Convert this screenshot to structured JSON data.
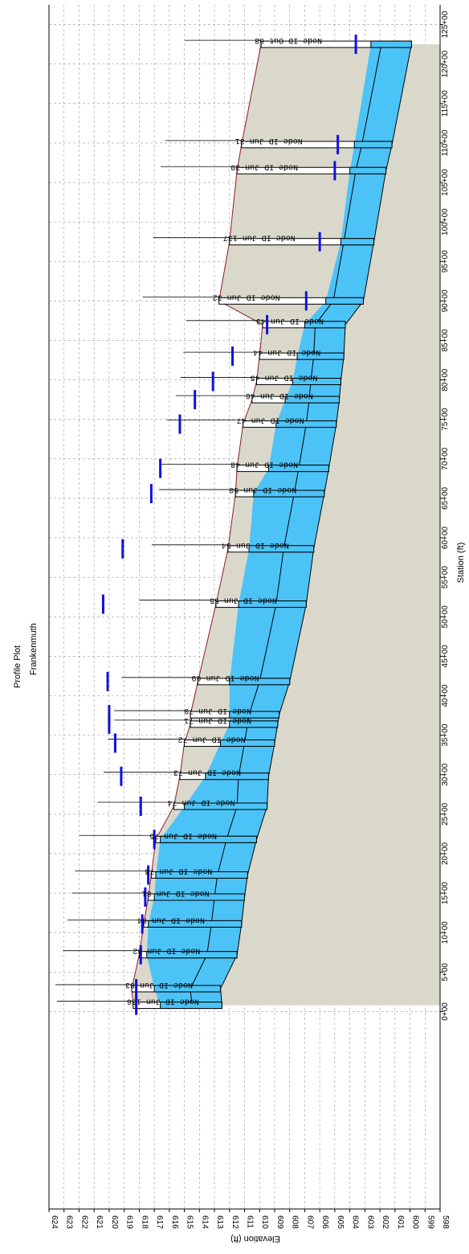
{
  "chart_data": {
    "type": "profile",
    "title": "Profile Plot",
    "subtitle": "Frankenmuth",
    "xlabel": "Station (ft)",
    "ylabel": "Elevation (ft)",
    "xlim": [
      -2500,
      12750
    ],
    "ylim": [
      598,
      624
    ],
    "x_ticks": [
      {
        "v": 0,
        "label": "0+00"
      },
      {
        "v": 500,
        "label": "5+00"
      },
      {
        "v": 1000,
        "label": "10+00"
      },
      {
        "v": 1500,
        "label": "15+00"
      },
      {
        "v": 2000,
        "label": "20+00"
      },
      {
        "v": 2500,
        "label": "25+00"
      },
      {
        "v": 3000,
        "label": "30+00"
      },
      {
        "v": 3500,
        "label": "35+00"
      },
      {
        "v": 4000,
        "label": "40+00"
      },
      {
        "v": 4500,
        "label": "45+00"
      },
      {
        "v": 5000,
        "label": "50+00"
      },
      {
        "v": 5500,
        "label": "55+00"
      },
      {
        "v": 6000,
        "label": "60+00"
      },
      {
        "v": 6500,
        "label": "65+00"
      },
      {
        "v": 7000,
        "label": "70+00"
      },
      {
        "v": 7500,
        "label": "75+00"
      },
      {
        "v": 8000,
        "label": "80+00"
      },
      {
        "v": 8500,
        "label": "85+00"
      },
      {
        "v": 9000,
        "label": "90+00"
      },
      {
        "v": 9500,
        "label": "95+00"
      },
      {
        "v": 10000,
        "label": "100+00"
      },
      {
        "v": 10500,
        "label": "105+00"
      },
      {
        "v": 11000,
        "label": "110+00"
      },
      {
        "v": 11500,
        "label": "115+00"
      },
      {
        "v": 12000,
        "label": "120+00"
      },
      {
        "v": 12500,
        "label": "125+00"
      }
    ],
    "y_ticks": [
      598,
      599,
      600,
      601,
      602,
      603,
      604,
      605,
      606,
      607,
      608,
      609,
      610,
      611,
      612,
      613,
      614,
      615,
      616,
      617,
      618,
      619,
      620,
      621,
      622,
      623,
      624
    ],
    "grid": true,
    "colors": {
      "water": "#4cc3f7",
      "ground": "#dad8cb",
      "hgl": "#1010dd",
      "pipe": "#000000",
      "surface": "#8b1a2a"
    },
    "nodes": [
      {
        "id": "Node ID Jun-136",
        "station": 80,
        "invert": 612.5,
        "rim": 618.4,
        "water": 616.6,
        "hgl": 618.2
      },
      {
        "id": "Node ID Jun-83",
        "station": 290,
        "invert": 612.6,
        "rim": 618.5,
        "water": 617.0,
        "hgl": 618.2
      },
      {
        "id": "Node ID Jun-82",
        "station": 720,
        "invert": 611.5,
        "rim": 618.0,
        "water": 617.5,
        "hgl": 617.9
      },
      {
        "id": "Node ID Jun-84",
        "station": 1110,
        "invert": 611.2,
        "rim": 617.7,
        "water": 617.4,
        "hgl": 617.8
      },
      {
        "id": "Node ID Jun-81",
        "station": 1450,
        "invert": 611.0,
        "rim": 617.4,
        "water": 617.0,
        "hgl": 617.6
      },
      {
        "id": "Node ID Jun-78",
        "station": 1730,
        "invert": 610.8,
        "rim": 617.2,
        "water": 616.9,
        "hgl": 617.4
      },
      {
        "id": "Node ID Jun-75",
        "station": 2180,
        "invert": 610.2,
        "rim": 616.9,
        "water": 616.6,
        "hgl": 617.0
      },
      {
        "id": "Node ID Jun-74",
        "station": 2600,
        "invert": 609.5,
        "rim": 615.7,
        "water": 615.0,
        "hgl": 617.9
      },
      {
        "id": "Node ID Jun-73",
        "station": 2980,
        "invert": 609.4,
        "rim": 615.3,
        "water": 613.6,
        "hgl": 619.2
      },
      {
        "id": "Node ID Jun-72",
        "station": 3400,
        "invert": 609.0,
        "rim": 615.0,
        "water": 612.6,
        "hgl": 619.6
      },
      {
        "id": "Node ID Jun-71",
        "station": 3640,
        "invert": 608.8,
        "rim": 614.6,
        "water": 612.0,
        "hgl": 620.0
      },
      {
        "id": "Node ID Jun-70",
        "station": 3760,
        "invert": 608.7,
        "rim": 614.6,
        "water": 612.0,
        "hgl": 620.0
      },
      {
        "id": "Node ID Jun-69",
        "station": 4180,
        "invert": 608.0,
        "rim": 614.1,
        "water": 612.0,
        "hgl": 620.1
      },
      {
        "id": "Node ID Jun-55",
        "station": 5160,
        "invert": 606.9,
        "rim": 612.9,
        "water": 611.4,
        "hgl": 620.4
      },
      {
        "id": "Node ID Jun-54",
        "station": 5860,
        "invert": 606.4,
        "rim": 612.1,
        "water": 610.7,
        "hgl": 619.1
      },
      {
        "id": "Node ID Jun-50",
        "station": 6560,
        "invert": 605.7,
        "rim": 611.6,
        "water": 610.4,
        "hgl": 617.2
      },
      {
        "id": "Node ID Jun-48",
        "station": 6880,
        "invert": 605.4,
        "rim": 611.5,
        "water": 609.4,
        "hgl": 616.6
      },
      {
        "id": "Node ID Jun-47",
        "station": 7440,
        "invert": 604.9,
        "rim": 611.1,
        "water": 608.9,
        "hgl": 615.3
      },
      {
        "id": "Node ID Jun-46",
        "station": 7750,
        "invert": 604.7,
        "rim": 610.5,
        "water": 608.3,
        "hgl": 614.3
      },
      {
        "id": "Node ID Jun-45",
        "station": 7980,
        "invert": 604.6,
        "rim": 610.2,
        "water": 607.8,
        "hgl": 613.1
      },
      {
        "id": "Node ID Jun-44",
        "station": 8300,
        "invert": 604.4,
        "rim": 610.0,
        "water": 607.5,
        "hgl": 611.8
      },
      {
        "id": "Node ID Jun-43",
        "station": 8700,
        "invert": 604.3,
        "rim": 609.8,
        "water": 607.0,
        "hgl": 609.5
      },
      {
        "id": "Node ID Jun-32",
        "station": 9000,
        "invert": 603.1,
        "rim": 612.7,
        "water": 605.6,
        "hgl": 606.9
      },
      {
        "id": "Node ID Jun-137",
        "station": 9750,
        "invert": 602.4,
        "rim": 612.0,
        "water": 604.6,
        "hgl": 606.0
      },
      {
        "id": "Node ID Jun-30",
        "station": 10650,
        "invert": 601.6,
        "rim": 611.5,
        "water": 604.0,
        "hgl": 605.0
      },
      {
        "id": "Node ID Jun-31",
        "station": 10980,
        "invert": 601.2,
        "rim": 611.2,
        "water": 603.7,
        "hgl": 604.8
      },
      {
        "id": "Node ID Out-08",
        "station": 12250,
        "invert": 599.9,
        "rim": 609.9,
        "water": 602.6,
        "hgl": 603.6
      }
    ]
  }
}
